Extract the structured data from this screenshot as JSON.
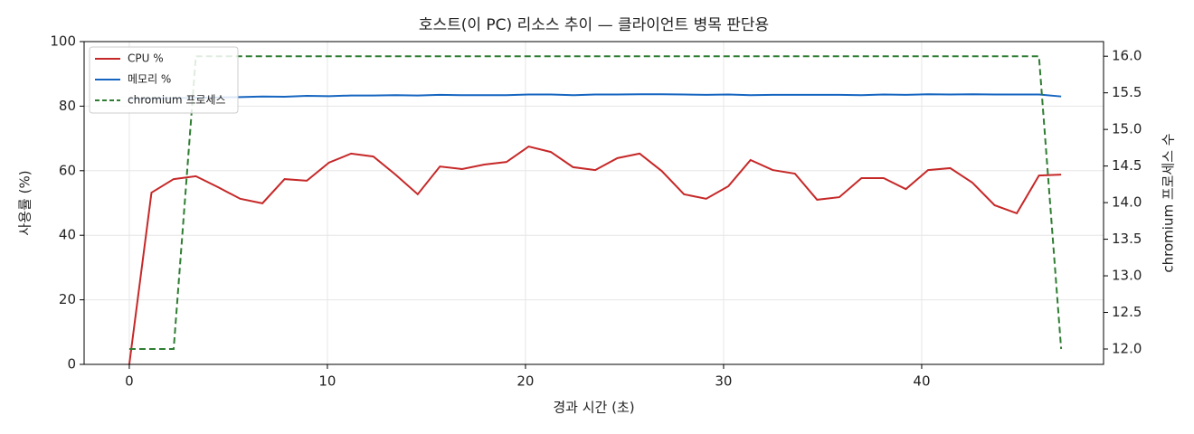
{
  "chart_data": {
    "type": "line",
    "title": "호스트(이 PC) 리소스 추이 — 클라이언트 병목 판단용",
    "x_label": "경과 시간 (초)",
    "y_label": "사용률 (%)",
    "y2_label": "chromium 프로세스 수",
    "x": [
      0,
      1.12,
      2.24,
      3.36,
      4.48,
      5.6,
      6.72,
      7.84,
      8.96,
      10.08,
      11.2,
      12.32,
      13.44,
      14.56,
      15.68,
      16.8,
      17.92,
      19.04,
      20.16,
      21.28,
      22.4,
      23.52,
      24.64,
      25.76,
      26.88,
      28,
      29.12,
      30.24,
      31.36,
      32.48,
      33.6,
      34.72,
      35.84,
      36.96,
      38.08,
      39.2,
      40.32,
      41.44,
      42.56,
      43.68,
      44.8,
      45.92,
      47.04
    ],
    "series": [
      {
        "name": "CPU %",
        "color": "#c62828",
        "values": [
          0,
          53.2,
          57.4,
          58.3,
          54.9,
          51.3,
          49.9,
          57.4,
          56.9,
          62.5,
          65.3,
          64.4,
          58.8,
          52.7,
          61.3,
          60.5,
          61.9,
          62.7,
          67.5,
          65.8,
          61.1,
          60.2,
          63.9,
          65.3,
          59.9,
          52.7,
          51.3,
          55.2,
          63.3,
          60.2,
          59.1,
          51.0,
          51.8,
          57.7,
          57.7,
          54.3,
          60.2,
          60.8,
          56.3,
          49.3,
          46.8,
          58.5,
          58.8
        ]
      },
      {
        "name": "메모리 %",
        "color": "#1565c0",
        "values": [
          82.3,
          82.4,
          82.5,
          82.6,
          82.7,
          82.8,
          83.0,
          82.9,
          83.2,
          83.1,
          83.3,
          83.3,
          83.4,
          83.3,
          83.5,
          83.4,
          83.4,
          83.4,
          83.6,
          83.6,
          83.4,
          83.6,
          83.6,
          83.7,
          83.7,
          83.6,
          83.5,
          83.6,
          83.4,
          83.5,
          83.5,
          83.5,
          83.5,
          83.4,
          83.6,
          83.5,
          83.7,
          83.6,
          83.7,
          83.6,
          83.6,
          83.6,
          83.0
        ]
      },
      {
        "name": "chromium 프로세스",
        "color": "#2e7d32",
        "dashed": true,
        "axis": "y2",
        "values": [
          12,
          12,
          12,
          16,
          16,
          16,
          16,
          16,
          16,
          16,
          16,
          16,
          16,
          16,
          16,
          16,
          16,
          16,
          16,
          16,
          16,
          16,
          16,
          16,
          16,
          16,
          16,
          16,
          16,
          16,
          16,
          16,
          16,
          16,
          16,
          16,
          16,
          16,
          16,
          16,
          16,
          16,
          12
        ]
      }
    ],
    "xlim": [
      -2.28,
      49.18
    ],
    "xticks": [
      0,
      10,
      20,
      30,
      40
    ],
    "ylim": [
      0,
      100
    ],
    "yticks": [
      0,
      20,
      40,
      60,
      80,
      100
    ],
    "y2lim": [
      11.79,
      16.2
    ],
    "y2ticks": [
      {
        "value": 12,
        "label": "12.0"
      },
      12.5,
      {
        "value": 13,
        "label": "13.0"
      },
      13.5,
      {
        "value": 14,
        "label": "14.0"
      },
      14.5,
      {
        "value": 15,
        "label": "15.0"
      },
      15.5,
      {
        "value": 16,
        "label": "16.0"
      }
    ],
    "grid": true,
    "legend": "upper left"
  }
}
